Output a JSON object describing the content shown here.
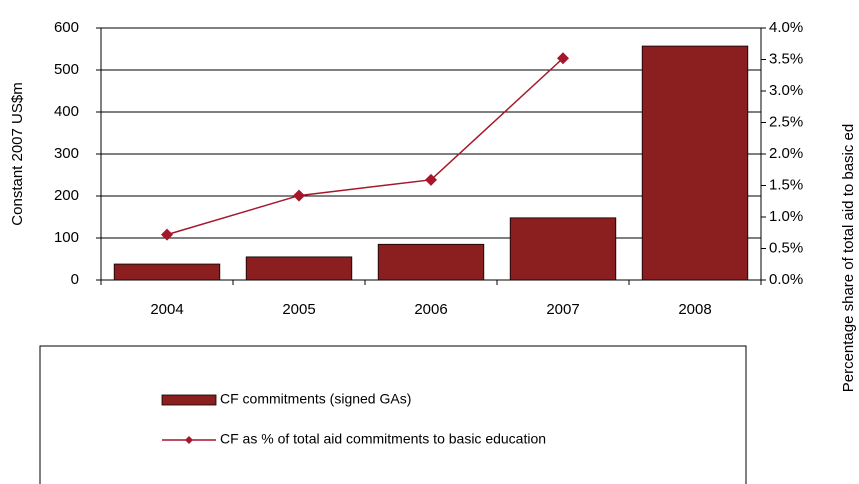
{
  "chart_data": {
    "type": "bar-line",
    "y_label": "Constant 2007 US$m",
    "y2_label": "Percentage share of total aid to basic ed",
    "categories": [
      "2004",
      "2005",
      "2006",
      "2007",
      "2008"
    ],
    "series": [
      {
        "name": "CF commitments (signed GAs)",
        "type": "bar",
        "color": "#8b1e1e",
        "values": [
          38,
          55,
          85,
          148,
          557
        ]
      },
      {
        "name": "CF as % of total aid commitments to basic education",
        "type": "line",
        "axis": "y2",
        "color": "#a5172b",
        "values": [
          0.72,
          1.34,
          1.59,
          3.52,
          null
        ]
      }
    ],
    "ylim": [
      0,
      600
    ],
    "yticks": [
      0,
      100,
      200,
      300,
      400,
      500,
      600
    ],
    "y2lim": [
      0,
      4
    ],
    "y2ticks": [
      {
        "value": 0,
        "label": "0.0%"
      },
      {
        "value": 0.5,
        "label": "0.5%"
      },
      {
        "value": 1,
        "label": "1.0%"
      },
      {
        "value": 1.5,
        "label": "1.5%"
      },
      {
        "value": 2,
        "label": "2.0%"
      },
      {
        "value": 2.5,
        "label": "2.5%"
      },
      {
        "value": 3,
        "label": "3.0%"
      },
      {
        "value": 3.5,
        "label": "3.5%"
      },
      {
        "value": 4,
        "label": "4.0%"
      }
    ],
    "grid": true
  }
}
